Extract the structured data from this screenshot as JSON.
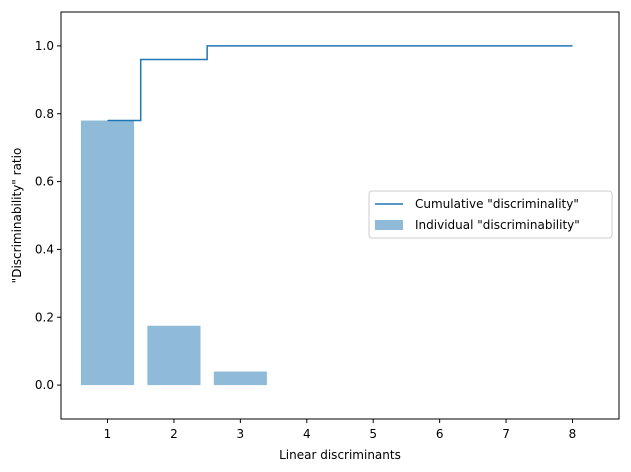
{
  "chart_data": {
    "type": "bar",
    "xlabel": "Linear discriminants",
    "ylabel": "\"Discriminability\" ratio",
    "xlim": [
      0.3,
      8.7
    ],
    "ylim": [
      -0.1,
      1.1
    ],
    "xticks": [
      1,
      2,
      3,
      4,
      5,
      6,
      7,
      8
    ],
    "yticks": [
      0.0,
      0.2,
      0.4,
      0.6,
      0.8,
      1.0
    ],
    "ytick_labels": [
      "0.0",
      "0.2",
      "0.4",
      "0.6",
      "0.8",
      "1.0"
    ],
    "grid": false,
    "legend_position": "center-right",
    "series": [
      {
        "name": "Cumulative \"discriminality\"",
        "type": "step",
        "color": "#1f77b4",
        "x": [
          1,
          2,
          3,
          4,
          5,
          6,
          7,
          8
        ],
        "values": [
          0.78,
          0.96,
          1.0,
          1.0,
          1.0,
          1.0,
          1.0,
          1.0
        ]
      },
      {
        "name": "Individual \"discriminability\"",
        "type": "bar",
        "color": "#1f77b4",
        "opacity": 0.5,
        "x": [
          1,
          2,
          3,
          4,
          5,
          6,
          7,
          8
        ],
        "values": [
          0.78,
          0.175,
          0.04,
          0.0,
          0.0,
          0.0,
          0.0,
          0.0
        ]
      }
    ]
  }
}
